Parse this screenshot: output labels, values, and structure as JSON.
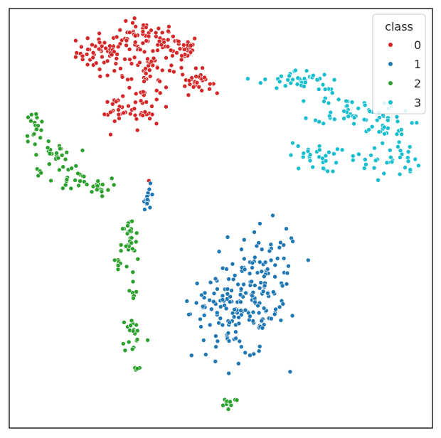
{
  "chart_data": {
    "type": "scatter",
    "title": "",
    "xlabel": "",
    "ylabel": "",
    "axes_ticks": "none",
    "grid": false,
    "legend": {
      "title": "class",
      "placement": "top-right",
      "entries": [
        {
          "label": "0",
          "color": "#d62728"
        },
        {
          "label": "1",
          "color": "#1f77b4"
        },
        {
          "label": "2",
          "color": "#2ca02c"
        },
        {
          "label": "3",
          "color": "#17becf"
        }
      ]
    },
    "series": [
      {
        "name": "0",
        "color": "#d62728",
        "clusters": [
          {
            "center": [
              0.225,
              0.896
            ],
            "spread": [
              0.033,
              0.022
            ],
            "n": 55
          },
          {
            "center": [
              0.32,
              0.927
            ],
            "spread": [
              0.038,
              0.02
            ],
            "n": 60
          },
          {
            "center": [
              0.405,
              0.905
            ],
            "spread": [
              0.022,
              0.016
            ],
            "n": 30
          },
          {
            "center": [
              0.33,
              0.86
            ],
            "spread": [
              0.045,
              0.023
            ],
            "n": 40
          },
          {
            "center": [
              0.442,
              0.826
            ],
            "spread": [
              0.018,
              0.014
            ],
            "n": 30
          },
          {
            "center": [
              0.315,
              0.774
            ],
            "spread": [
              0.02,
              0.03
            ],
            "n": 35
          },
          {
            "center": [
              0.255,
              0.754
            ],
            "spread": [
              0.015,
              0.016
            ],
            "n": 20
          },
          {
            "center": [
              0.33,
              0.592
            ],
            "spread": [
              0.002,
              0.002
            ],
            "n": 1
          },
          {
            "center": [
              0.39,
              0.85
            ],
            "spread": [
              0.002,
              0.002
            ],
            "n": 1
          }
        ]
      },
      {
        "name": "1",
        "color": "#1f77b4",
        "clusters": [
          {
            "center": [
              0.54,
              0.275
            ],
            "spread": [
              0.055,
              0.055
            ],
            "n": 130
          },
          {
            "center": [
              0.61,
              0.36
            ],
            "spread": [
              0.04,
              0.06
            ],
            "n": 70
          },
          {
            "center": [
              0.46,
              0.305
            ],
            "spread": [
              0.018,
              0.012
            ],
            "n": 15
          },
          {
            "center": [
              0.33,
              0.55
            ],
            "spread": [
              0.006,
              0.014
            ],
            "n": 14
          }
        ]
      },
      {
        "name": "2",
        "color": "#2ca02c",
        "clusters": [
          {
            "center": [
              0.06,
              0.72
            ],
            "spread": [
              0.012,
              0.018
            ],
            "n": 20
          },
          {
            "center": [
              0.11,
              0.65
            ],
            "spread": [
              0.02,
              0.015
            ],
            "n": 22
          },
          {
            "center": [
              0.15,
              0.595
            ],
            "spread": [
              0.02,
              0.014
            ],
            "n": 18
          },
          {
            "center": [
              0.21,
              0.575
            ],
            "spread": [
              0.016,
              0.01
            ],
            "n": 16
          },
          {
            "center": [
              0.07,
              0.61
            ],
            "spread": [
              0.004,
              0.008
            ],
            "n": 4
          },
          {
            "center": [
              0.285,
              0.435
            ],
            "spread": [
              0.01,
              0.035
            ],
            "n": 30
          },
          {
            "center": [
              0.26,
              0.39
            ],
            "spread": [
              0.01,
              0.012
            ],
            "n": 10
          },
          {
            "center": [
              0.29,
              0.325
            ],
            "spread": [
              0.006,
              0.018
            ],
            "n": 8
          },
          {
            "center": [
              0.295,
              0.225
            ],
            "spread": [
              0.015,
              0.025
            ],
            "n": 20
          },
          {
            "center": [
              0.3,
              0.145
            ],
            "spread": [
              0.005,
              0.005
            ],
            "n": 4
          },
          {
            "center": [
              0.52,
              0.062
            ],
            "spread": [
              0.012,
              0.006
            ],
            "n": 12
          }
        ]
      },
      {
        "name": "3",
        "color": "#17becf",
        "clusters": [
          {
            "center": [
              0.68,
              0.83
            ],
            "spread": [
              0.04,
              0.012
            ],
            "n": 35
          },
          {
            "center": [
              0.8,
              0.76
            ],
            "spread": [
              0.04,
              0.018
            ],
            "n": 40
          },
          {
            "center": [
              0.88,
              0.72
            ],
            "spread": [
              0.035,
              0.02
            ],
            "n": 30
          },
          {
            "center": [
              0.72,
              0.645
            ],
            "spread": [
              0.03,
              0.018
            ],
            "n": 30
          },
          {
            "center": [
              0.89,
              0.64
            ],
            "spread": [
              0.04,
              0.022
            ],
            "n": 35
          },
          {
            "center": [
              0.74,
              0.81
            ],
            "spread": [
              0.02,
              0.01
            ],
            "n": 10
          }
        ]
      }
    ],
    "xlim": [
      0,
      1
    ],
    "ylim": [
      0,
      1
    ]
  }
}
